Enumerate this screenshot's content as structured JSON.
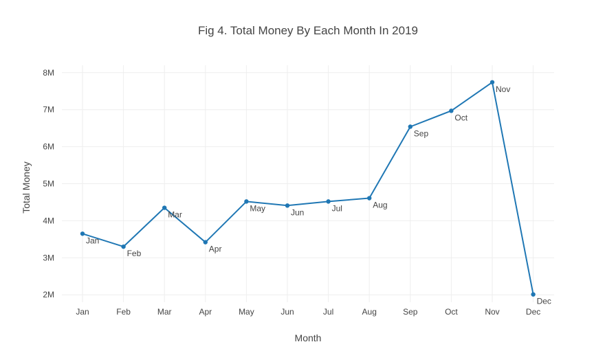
{
  "chart_data": {
    "type": "line",
    "title": "Fig 4. Total Money By Each Month In 2019",
    "xlabel": "Month",
    "ylabel": "Total Money",
    "categories": [
      "Jan",
      "Feb",
      "Mar",
      "Apr",
      "May",
      "Jun",
      "Jul",
      "Aug",
      "Sep",
      "Oct",
      "Nov",
      "Dec"
    ],
    "values": [
      3650000,
      3300000,
      4350000,
      3420000,
      4520000,
      4410000,
      4520000,
      4610000,
      6540000,
      6970000,
      7740000,
      2010000
    ],
    "point_labels": [
      "Jan",
      "Feb",
      "Mar",
      "Apr",
      "May",
      "Jun",
      "Jul",
      "Aug",
      "Sep",
      "Oct",
      "Nov",
      "Dec"
    ],
    "ylim": [
      1800000,
      8200000
    ],
    "yticks": [
      2000000,
      3000000,
      4000000,
      5000000,
      6000000,
      7000000,
      8000000
    ],
    "ytick_labels": [
      "2M",
      "3M",
      "4M",
      "5M",
      "6M",
      "7M",
      "8M"
    ],
    "grid": true,
    "legend": "none",
    "colors": {
      "series": "#1f77b4",
      "grid": "#eeeeee",
      "text": "#444444"
    }
  }
}
